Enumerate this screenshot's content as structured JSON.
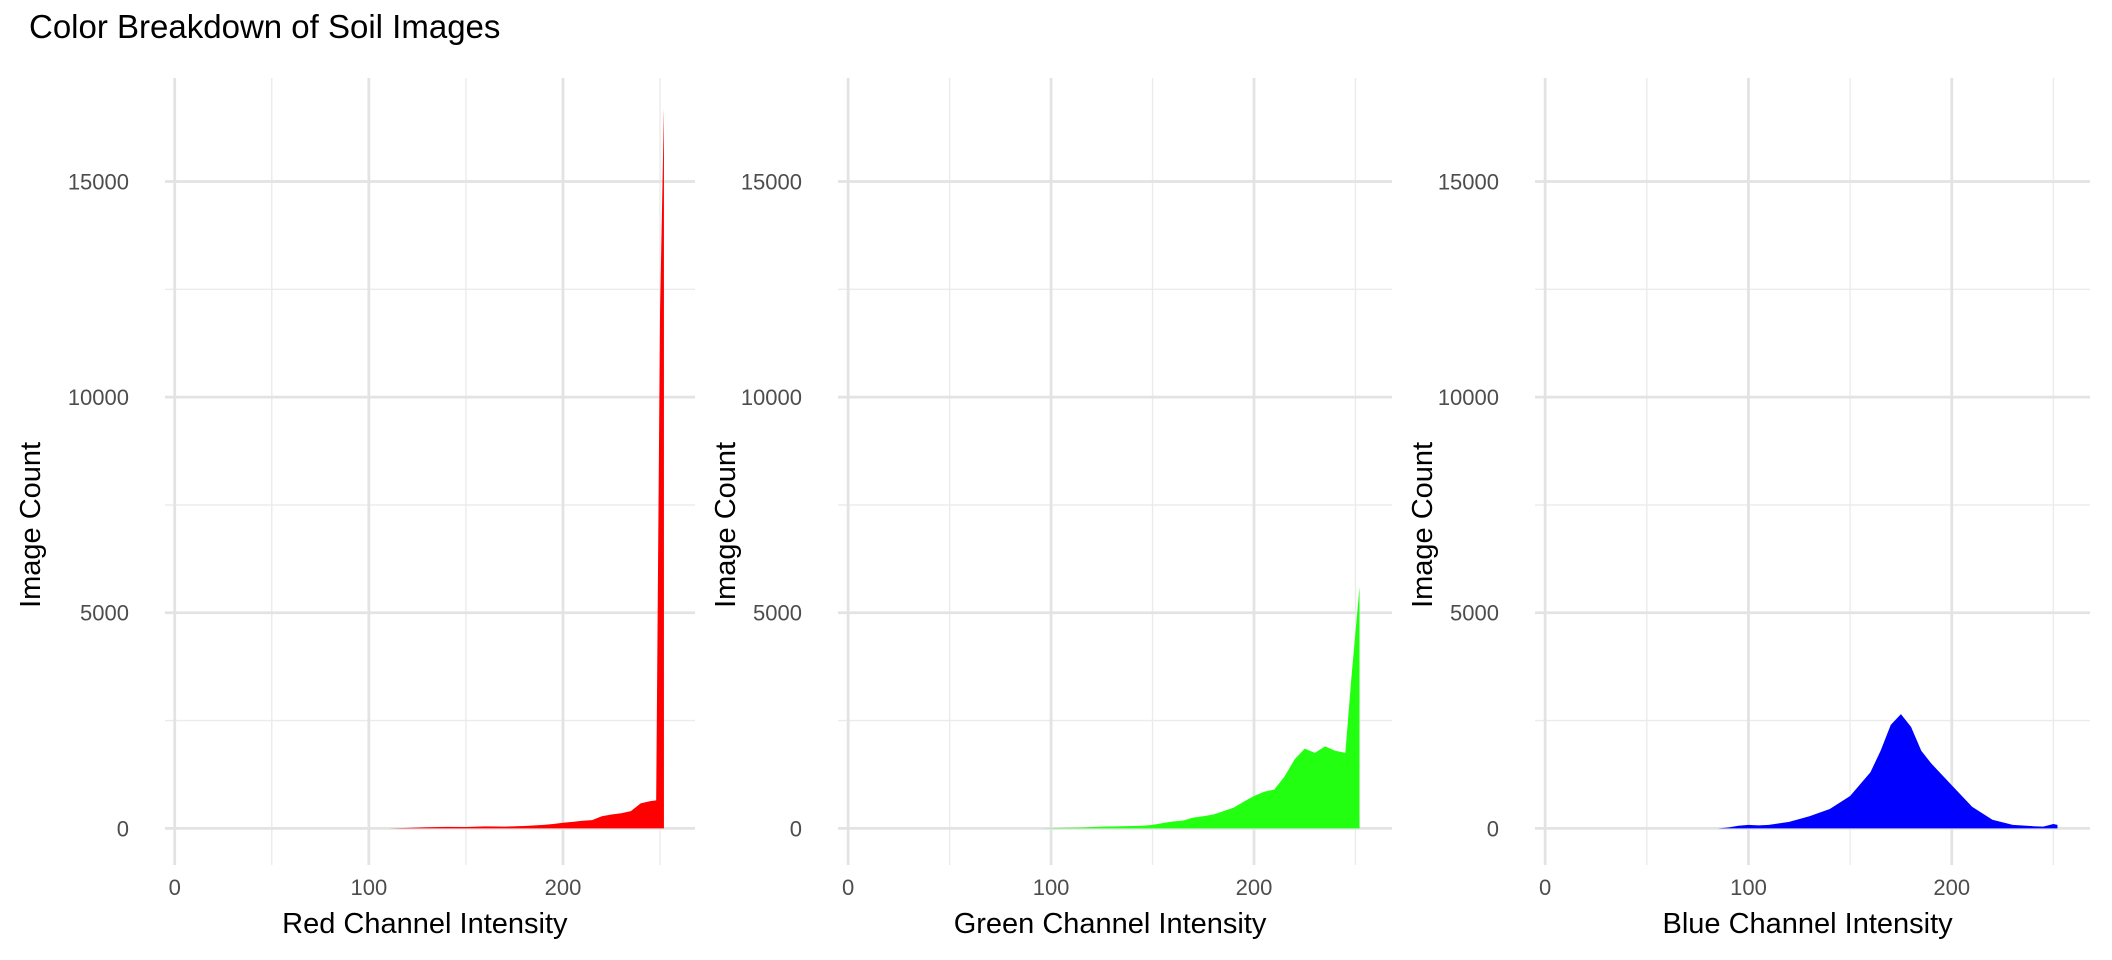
{
  "title": "Color Breakdown of Soil Images",
  "chart_data": [
    {
      "type": "area",
      "xlabel": "Red Channel Intensity",
      "ylabel": "Image Count",
      "xlim": [
        -5,
        268
      ],
      "ylim": [
        -850,
        17400
      ],
      "x_ticks": [
        0,
        100,
        200
      ],
      "x_tick_labels": [
        "0",
        "100",
        "200"
      ],
      "y_ticks": [
        0,
        5000,
        10000,
        15000
      ],
      "y_tick_labels": [
        "0",
        "5000",
        "10000",
        "15000"
      ],
      "grid": true,
      "color": "#ff0000",
      "series": [
        {
          "x": [
            110,
            120,
            130,
            140,
            150,
            160,
            170,
            180,
            190,
            195,
            200,
            205,
            210,
            215,
            220,
            225,
            230,
            235,
            240,
            245,
            248,
            250,
            252
          ],
          "y": [
            0,
            10,
            25,
            35,
            30,
            45,
            40,
            55,
            80,
            100,
            130,
            150,
            175,
            190,
            280,
            320,
            350,
            400,
            580,
            630,
            650,
            12000,
            16700
          ]
        }
      ]
    },
    {
      "type": "area",
      "xlabel": "Green Channel Intensity",
      "ylabel": "Image Count",
      "xlim": [
        -5,
        268
      ],
      "ylim": [
        -850,
        17400
      ],
      "x_ticks": [
        0,
        100,
        200
      ],
      "x_tick_labels": [
        "0",
        "100",
        "200"
      ],
      "y_ticks": [
        0,
        5000,
        10000,
        15000
      ],
      "y_tick_labels": [
        "0",
        "5000",
        "10000",
        "15000"
      ],
      "grid": true,
      "color": "#22ff11",
      "series": [
        {
          "x": [
            95,
            105,
            115,
            125,
            135,
            145,
            150,
            155,
            160,
            165,
            170,
            175,
            180,
            185,
            190,
            195,
            200,
            205,
            210,
            215,
            220,
            225,
            230,
            235,
            240,
            245,
            248,
            252
          ],
          "y": [
            0,
            10,
            20,
            40,
            50,
            60,
            80,
            120,
            160,
            180,
            250,
            280,
            320,
            400,
            480,
            620,
            750,
            850,
            900,
            1200,
            1600,
            1850,
            1750,
            1900,
            1800,
            1750,
            3500,
            5600
          ]
        }
      ]
    },
    {
      "type": "area",
      "xlabel": "Blue Channel Intensity",
      "ylabel": "Image Count",
      "xlim": [
        -5,
        268
      ],
      "ylim": [
        -850,
        17400
      ],
      "x_ticks": [
        0,
        100,
        200
      ],
      "x_tick_labels": [
        "0",
        "100",
        "200"
      ],
      "y_ticks": [
        0,
        5000,
        10000,
        15000
      ],
      "y_tick_labels": [
        "0",
        "5000",
        "10000",
        "15000"
      ],
      "grid": true,
      "color": "#0000ff",
      "series": [
        {
          "x": [
            85,
            90,
            95,
            100,
            105,
            110,
            120,
            130,
            140,
            150,
            160,
            165,
            170,
            175,
            180,
            185,
            190,
            200,
            210,
            220,
            230,
            240,
            245,
            250,
            252
          ],
          "y": [
            0,
            20,
            60,
            80,
            70,
            80,
            150,
            280,
            450,
            750,
            1300,
            1800,
            2400,
            2650,
            2350,
            1800,
            1500,
            1000,
            500,
            200,
            80,
            50,
            40,
            100,
            80
          ]
        }
      ]
    }
  ]
}
